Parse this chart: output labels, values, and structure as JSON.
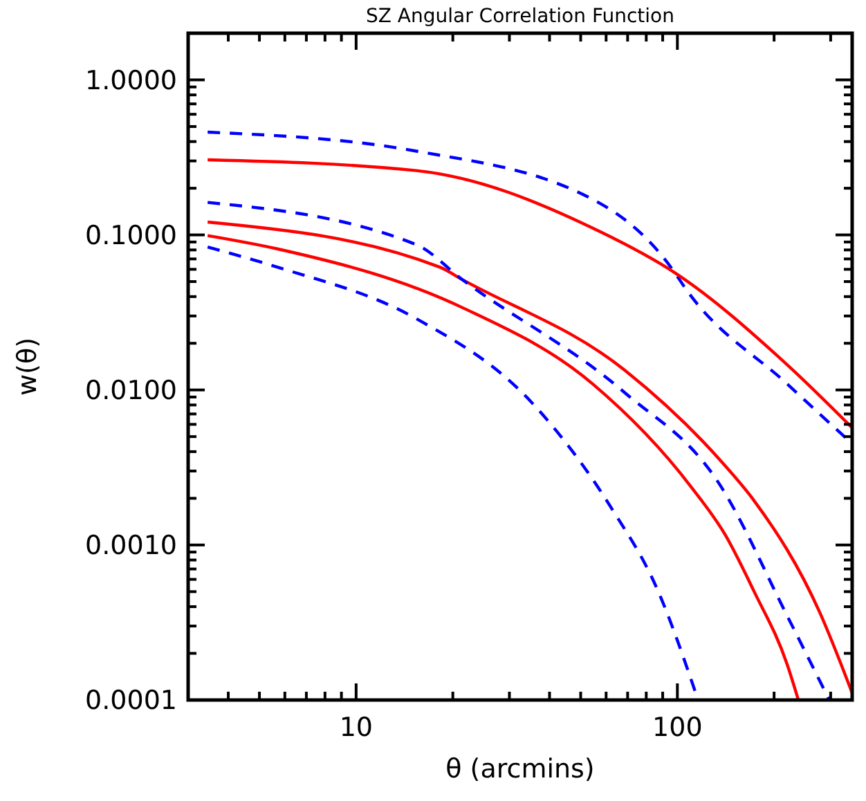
{
  "chart_data": {
    "type": "line",
    "title": "SZ Angular Correlation Function",
    "xlabel": "θ (arcmins)",
    "ylabel": "w(θ)",
    "log": "xy",
    "grid": false,
    "marker": "none",
    "xlim": [
      3,
      350
    ],
    "ylim": [
      0.0001,
      2
    ],
    "xticks": [
      {
        "value": 3,
        "label": null
      },
      {
        "value": 4,
        "label": null
      },
      {
        "value": 5,
        "label": null
      },
      {
        "value": 6,
        "label": null
      },
      {
        "value": 7,
        "label": null
      },
      {
        "value": 8,
        "label": null
      },
      {
        "value": 9,
        "label": null
      },
      10,
      {
        "value": 20,
        "label": null
      },
      {
        "value": 30,
        "label": null
      },
      {
        "value": 40,
        "label": null
      },
      {
        "value": 50,
        "label": null
      },
      {
        "value": 60,
        "label": null
      },
      {
        "value": 70,
        "label": null
      },
      {
        "value": 80,
        "label": null
      },
      {
        "value": 90,
        "label": null
      },
      100,
      {
        "value": 200,
        "label": null
      },
      {
        "value": 300,
        "label": null
      }
    ],
    "yticks": [
      {
        "value": 0.0001,
        "label": "0.0001"
      },
      {
        "value": 0.0002,
        "label": null
      },
      {
        "value": 0.0003,
        "label": null
      },
      {
        "value": 0.0004,
        "label": null
      },
      {
        "value": 0.0005,
        "label": null
      },
      {
        "value": 0.0006,
        "label": null
      },
      {
        "value": 0.0007,
        "label": null
      },
      {
        "value": 0.0008,
        "label": null
      },
      {
        "value": 0.0009,
        "label": null
      },
      {
        "value": 0.001,
        "label": "0.0010"
      },
      {
        "value": 0.002,
        "label": null
      },
      {
        "value": 0.003,
        "label": null
      },
      {
        "value": 0.004,
        "label": null
      },
      {
        "value": 0.005,
        "label": null
      },
      {
        "value": 0.006,
        "label": null
      },
      {
        "value": 0.007,
        "label": null
      },
      {
        "value": 0.008,
        "label": null
      },
      {
        "value": 0.009,
        "label": null
      },
      {
        "value": 0.01,
        "label": "0.0100"
      },
      {
        "value": 0.02,
        "label": null
      },
      {
        "value": 0.03,
        "label": null
      },
      {
        "value": 0.04,
        "label": null
      },
      {
        "value": 0.05,
        "label": null
      },
      {
        "value": 0.06,
        "label": null
      },
      {
        "value": 0.07,
        "label": null
      },
      {
        "value": 0.08,
        "label": null
      },
      {
        "value": 0.09,
        "label": null
      },
      {
        "value": 0.1,
        "label": "0.1000"
      },
      {
        "value": 0.2,
        "label": null
      },
      {
        "value": 0.3,
        "label": null
      },
      {
        "value": 0.4,
        "label": null
      },
      {
        "value": 0.5,
        "label": null
      },
      {
        "value": 0.6,
        "label": null
      },
      {
        "value": 0.7,
        "label": null
      },
      {
        "value": 0.8,
        "label": null
      },
      {
        "value": 0.9,
        "label": null
      },
      {
        "value": 1,
        "label": "1.0000"
      },
      {
        "value": 2,
        "label": null
      }
    ],
    "series": [
      {
        "color": "#0000ff",
        "line_style": "dashed",
        "x": [
          3.45,
          15.4,
          58,
          98.2,
          105,
          220,
          350
        ],
        "values": [
          0.46,
          0.347,
          0.158,
          0.057,
          0.0464,
          0.0109,
          0.0045
        ]
      },
      {
        "color": "#ff0000",
        "line_style": "solid",
        "x": [
          3.45,
          15.4,
          58,
          98.2,
          220,
          350
        ],
        "values": [
          0.305,
          0.26,
          0.104,
          0.057,
          0.0145,
          0.0057
        ]
      },
      {
        "color": "#ff0000",
        "line_style": "solid",
        "x": [
          3.45,
          18.2,
          21.4,
          68.6,
          138,
          173,
          277,
          350
        ],
        "values": [
          0.121,
          0.062,
          0.0515,
          0.0134,
          0.0034,
          0.00194,
          0.00037,
          0.000111
        ]
      },
      {
        "color": "#ff0000",
        "line_style": "solid",
        "x": [
          3.45,
          5.68,
          21.4,
          54.6,
          110,
          141,
          173,
          220,
          238
        ],
        "values": [
          0.099,
          0.0813,
          0.034,
          0.0109,
          0.00239,
          0.00116,
          0.000505,
          0.000168,
          0.0001
        ]
      },
      {
        "color": "#0000ff",
        "line_style": "dashed",
        "x": [
          3.45,
          15.4,
          21.4,
          68.6,
          134,
          220,
          297
        ],
        "values": [
          0.162,
          0.0865,
          0.0515,
          0.0096,
          0.00254,
          0.000347,
          0.0001
        ]
      },
      {
        "color": "#0000ff",
        "line_style": "dashed",
        "x": [
          3.45,
          5.68,
          15.4,
          35.2,
          62.1,
          86.3,
          116
        ],
        "values": [
          0.0835,
          0.062,
          0.0288,
          0.0083,
          0.00175,
          0.000526,
          0.0001
        ]
      }
    ]
  }
}
